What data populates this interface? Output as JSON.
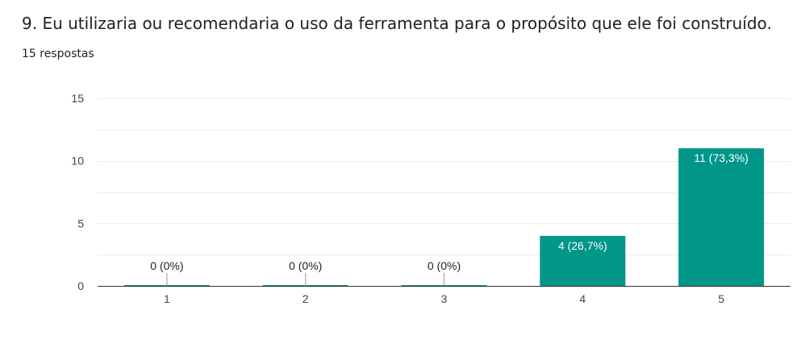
{
  "header": {
    "question": "9. Eu utilizaria ou recomendaria o uso da ferramenta para o propósito que ele foi construído.",
    "responses": "15 respostas"
  },
  "colors": {
    "bar": "#009688",
    "grid": "#ebebeb",
    "axis": "#333333",
    "label_inside": "#ffffff",
    "label_outside": "#222222"
  },
  "chart_data": {
    "type": "bar",
    "categories": [
      "1",
      "2",
      "3",
      "4",
      "5"
    ],
    "values": [
      0,
      0,
      0,
      4,
      11
    ],
    "data_labels": [
      "0 (0%)",
      "0 (0%)",
      "0 (0%)",
      "4 (26,7%)",
      "11 (73,3%)"
    ],
    "ylim": [
      0,
      15
    ],
    "yticks": [
      0,
      5,
      10,
      15
    ],
    "title": "",
    "xlabel": "",
    "ylabel": "",
    "grid": true
  }
}
